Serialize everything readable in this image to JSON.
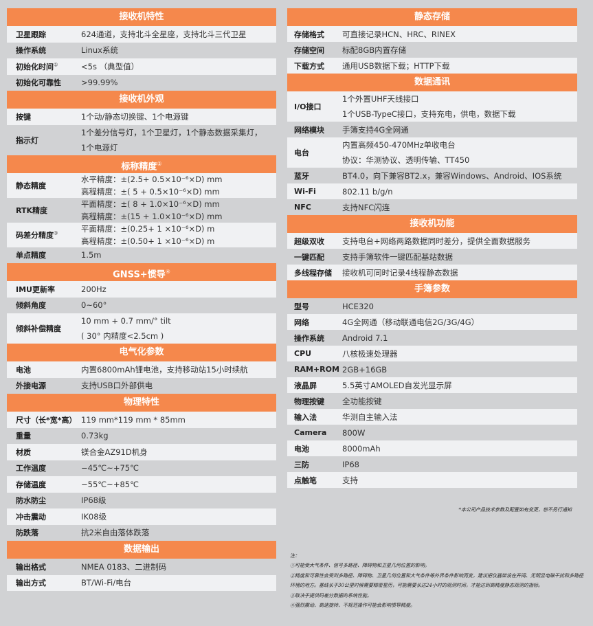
{
  "colors": {
    "header": "#f5884c",
    "row_light": "#f0f1f3",
    "row_grey": "#d1d2d4"
  },
  "left": [
    {
      "title": "接收机特性",
      "sup": "",
      "rows": [
        {
          "label": "卫星跟踪",
          "sup": "",
          "lines": [
            "624通道，支持北斗全星座，支持北斗三代卫星"
          ]
        },
        {
          "label": "操作系统",
          "sup": "",
          "lines": [
            "Linux系统"
          ]
        },
        {
          "label": "初始化时间",
          "sup": "①",
          "lines": [
            "<5s （典型值）"
          ]
        },
        {
          "label": "初始化可靠性",
          "sup": "",
          "lines": [
            ">99.99%"
          ]
        }
      ]
    },
    {
      "title": "接收机外观",
      "sup": "",
      "rows": [
        {
          "label": "按键",
          "sup": "",
          "lines": [
            "1个动/静态切换键、1个电源键"
          ]
        },
        {
          "label": "指示灯",
          "sup": "",
          "lines": [
            "1个差分信号灯，1个卫星灯，1个静态数据采集灯，",
            "1个电源灯"
          ]
        }
      ]
    },
    {
      "title": "标称精度",
      "sup": "②",
      "rows": [
        {
          "label": "静态精度",
          "sup": "",
          "lines": [
            "水平精度：±(2.5+ 0.5×10⁻⁶×D) mm",
            "高程精度：±( 5 + 0.5×10⁻⁶×D) mm"
          ]
        },
        {
          "label": "RTK精度",
          "sup": "",
          "lines": [
            "平面精度：±( 8 + 1.0×10⁻⁶×D) mm",
            "高程精度：±(15 + 1.0×10⁻⁶×D) mm"
          ]
        },
        {
          "label": "码差分精度",
          "sup": "③",
          "lines": [
            "平面精度：±(0.25+ 1 ×10⁻⁶×D) m",
            "高程精度：±(0.50+ 1 ×10⁻⁶×D) m"
          ]
        },
        {
          "label": "单点精度",
          "sup": "",
          "lines": [
            "1.5m"
          ]
        }
      ]
    },
    {
      "title": "GNSS+惯导",
      "sup": "④",
      "rows": [
        {
          "label": "IMU更新率",
          "sup": "",
          "lines": [
            "200Hz"
          ]
        },
        {
          "label": "倾斜角度",
          "sup": "",
          "lines": [
            "0~60°"
          ]
        },
        {
          "label": "倾斜补偿精度",
          "sup": "",
          "lines": [
            "10 mm + 0.7 mm/°  tilt",
            "( 30° 内精度<2.5cm )"
          ]
        }
      ]
    },
    {
      "title": "电气化参数",
      "sup": "",
      "rows": [
        {
          "label": "电池",
          "sup": "",
          "lines": [
            "内置6800mAh锂电池，支持移动站15小时续航"
          ]
        },
        {
          "label": "外接电源",
          "sup": "",
          "lines": [
            "支持USB口外部供电"
          ]
        }
      ]
    },
    {
      "title": "物理特性",
      "sup": "",
      "rows": [
        {
          "label": "尺寸（长*宽*高）",
          "sup": "",
          "lines": [
            "119 mm*119 mm * 85mm"
          ]
        },
        {
          "label": "重量",
          "sup": "",
          "lines": [
            "0.73kg"
          ]
        },
        {
          "label": "材质",
          "sup": "",
          "lines": [
            "镁合金AZ91D机身"
          ]
        },
        {
          "label": "工作温度",
          "sup": "",
          "lines": [
            "−45℃~+75℃"
          ]
        },
        {
          "label": "存储温度",
          "sup": "",
          "lines": [
            "−55℃~+85℃"
          ]
        },
        {
          "label": "防水防尘",
          "sup": "",
          "lines": [
            "IP68级"
          ]
        },
        {
          "label": "冲击震动",
          "sup": "",
          "lines": [
            "IK08级"
          ]
        },
        {
          "label": "防跌落",
          "sup": "",
          "lines": [
            "抗2米自由落体跌落"
          ]
        }
      ]
    },
    {
      "title": "数据输出",
      "sup": "",
      "rows": [
        {
          "label": "输出格式",
          "sup": "",
          "lines": [
            "NMEA 0183、二进制码"
          ]
        },
        {
          "label": "输出方式",
          "sup": "",
          "lines": [
            "BT/Wi-Fi/电台"
          ]
        }
      ]
    }
  ],
  "right": [
    {
      "title": "静态存储",
      "sup": "",
      "rows": [
        {
          "label": "存储格式",
          "sup": "",
          "lines": [
            "可直接记录HCN、HRC、RINEX"
          ]
        },
        {
          "label": "存储空间",
          "sup": "",
          "lines": [
            "标配8GB内置存储"
          ]
        },
        {
          "label": "下载方式",
          "sup": "",
          "lines": [
            "通用USB数据下载；HTTP下载"
          ]
        }
      ]
    },
    {
      "title": "数据通讯",
      "sup": "",
      "rows": [
        {
          "label": "I/O接口",
          "sup": "",
          "lines": [
            "1个外置UHF天线接口",
            "1个USB-TypeC接口，支持充电，供电，数据下载"
          ]
        },
        {
          "label": "网络模块",
          "sup": "",
          "lines": [
            "手簿支持4G全网通"
          ]
        },
        {
          "label": "电台",
          "sup": "",
          "lines": [
            "内置高频450-470MHz单收电台",
            "协议：华测协议、透明传输、TT450"
          ]
        },
        {
          "label": "蓝牙",
          "sup": "",
          "lines": [
            "BT4.0，向下兼容BT2.x，兼容Windows、Android、IOS系统"
          ]
        },
        {
          "label": "Wi-Fi",
          "sup": "",
          "lines": [
            "802.11 b/g/n"
          ]
        },
        {
          "label": "NFC",
          "sup": "",
          "lines": [
            "支持NFC闪连"
          ]
        }
      ]
    },
    {
      "title": "接收机功能",
      "sup": "",
      "rows": [
        {
          "label": "超级双收",
          "sup": "",
          "lines": [
            "支持电台+网络两路数据同时差分，提供全面数据服务"
          ]
        },
        {
          "label": "一键匹配",
          "sup": "",
          "lines": [
            "支持手簿软件一键匹配基站数据"
          ]
        },
        {
          "label": "多线程存储",
          "sup": "",
          "lines": [
            "接收机可同时记录4线程静态数据"
          ]
        }
      ]
    },
    {
      "title": "手簿参数",
      "sup": "",
      "rows": [
        {
          "label": "型号",
          "sup": "",
          "lines": [
            "HCE320"
          ]
        },
        {
          "label": "网络",
          "sup": "",
          "lines": [
            "4G全网通（移动联通电信2G/3G/4G）"
          ]
        },
        {
          "label": "操作系统",
          "sup": "",
          "lines": [
            "Android 7.1"
          ]
        },
        {
          "label": "CPU",
          "sup": "",
          "lines": [
            "八核极速处理器"
          ]
        },
        {
          "label": "RAM+ROM",
          "sup": "",
          "lines": [
            "2GB+16GB"
          ]
        },
        {
          "label": "液晶屏",
          "sup": "",
          "lines": [
            "5.5英寸AMOLED自发光显示屏"
          ]
        },
        {
          "label": "物理按键",
          "sup": "",
          "lines": [
            "全功能按键"
          ]
        },
        {
          "label": "输入法",
          "sup": "",
          "lines": [
            "华测自主输入法"
          ]
        },
        {
          "label": "Camera",
          "sup": "",
          "lines": [
            "800W"
          ]
        },
        {
          "label": "电池",
          "sup": "",
          "lines": [
            "8000mAh"
          ]
        },
        {
          "label": "三防",
          "sup": "",
          "lines": [
            "IP68"
          ]
        },
        {
          "label": "点触笔",
          "sup": "",
          "lines": [
            "支持"
          ]
        }
      ]
    }
  ],
  "notes": {
    "disclaimer": "*本公司产品技术参数及配置如有变更，恕不另行通知",
    "heading": "注：",
    "items": [
      "①可能受大气条件、信号多路径、障碍物和卫星几何位置的影响。",
      "②精度和可靠性会受到多路径、障碍物、卫星几何位置和大气条件等外界条件影响而变，建议把仪器架设在开阔、无明显电磁干扰和多路径环境的地方。基线长于30公里时候需要精密星历，可能需要长达24小时的观测时间，才能达到高精度静态观测的指标。",
      "③取决于提供码差分数据的系统性能。",
      "④强烈震动、高速旋转、不规范操作可能会影响惯导精度。"
    ]
  }
}
